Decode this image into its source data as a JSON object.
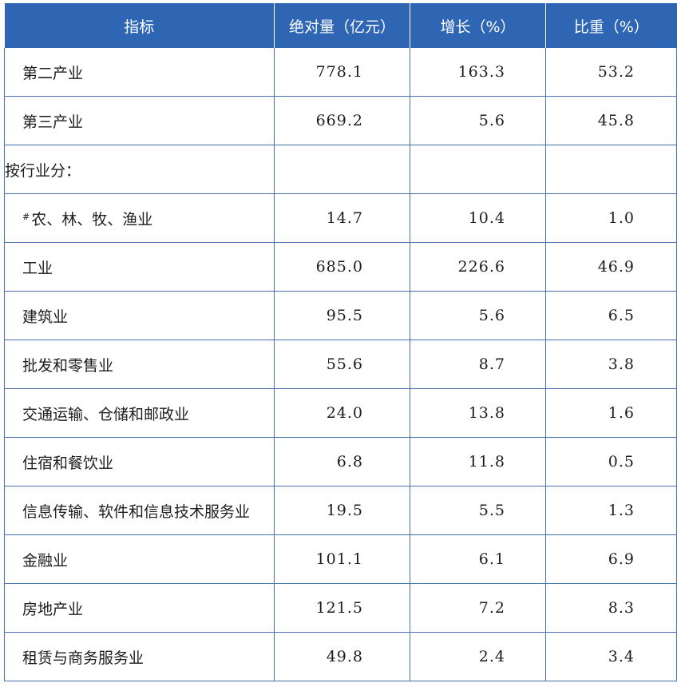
{
  "header": {
    "indicator": "指标",
    "absolute": "绝对量（亿元）",
    "growth": "增长（%）",
    "share": "比重（%）"
  },
  "rows": [
    {
      "name": "第二产业",
      "absolute": "778.1",
      "growth": "163.3",
      "share": "53.2"
    },
    {
      "name": "第三产业",
      "absolute": "669.2",
      "growth": "5.6",
      "share": "45.8"
    },
    {
      "name": "按行业分：",
      "absolute": "",
      "growth": "",
      "share": ""
    },
    {
      "prefix": "#",
      "name": "农、林、牧、渔业",
      "absolute": "14.7",
      "growth": "10.4",
      "share": "1.0"
    },
    {
      "name": "工业",
      "absolute": "685.0",
      "growth": "226.6",
      "share": "46.9"
    },
    {
      "name": "建筑业",
      "absolute": "95.5",
      "growth": "5.6",
      "share": "6.5"
    },
    {
      "name": "批发和零售业",
      "absolute": "55.6",
      "growth": "8.7",
      "share": "3.8"
    },
    {
      "name": "交通运输、仓储和邮政业",
      "absolute": "24.0",
      "growth": "13.8",
      "share": "1.6"
    },
    {
      "name": "住宿和餐饮业",
      "absolute": "6.8",
      "growth": "11.8",
      "share": "0.5"
    },
    {
      "name": "信息传输、软件和信息技术服务业",
      "absolute": "19.5",
      "growth": "5.5",
      "share": "1.3"
    },
    {
      "name": "金融业",
      "absolute": "101.1",
      "growth": "6.1",
      "share": "6.9"
    },
    {
      "name": "房地产业",
      "absolute": "121.5",
      "growth": "7.2",
      "share": "8.3"
    },
    {
      "name": "租赁与商务服务业",
      "absolute": "49.8",
      "growth": "2.4",
      "share": "3.4"
    }
  ]
}
